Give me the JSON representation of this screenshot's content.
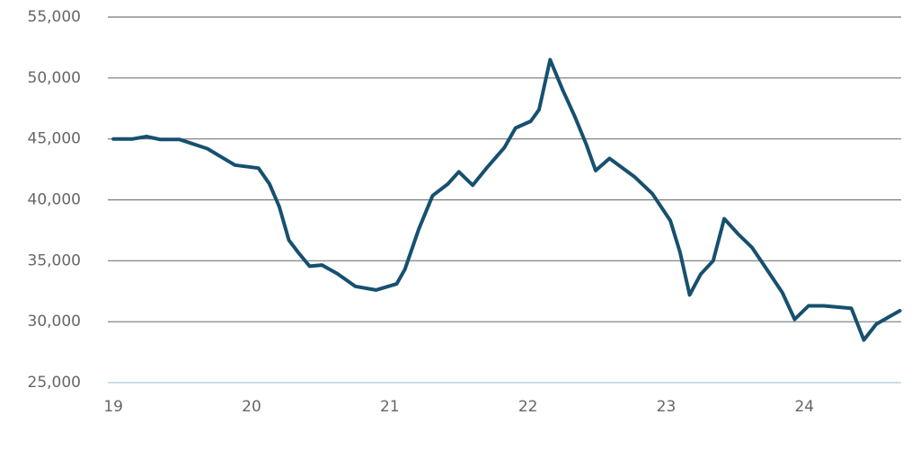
{
  "chart_data": {
    "type": "line",
    "x": [
      19.0,
      19.14,
      19.24,
      19.34,
      19.48,
      19.68,
      19.88,
      20.05,
      20.13,
      20.2,
      20.27,
      20.34,
      20.42,
      20.51,
      20.62,
      20.75,
      20.9,
      21.05,
      21.11,
      21.21,
      21.31,
      21.42,
      21.5,
      21.6,
      21.7,
      21.83,
      21.91,
      22.02,
      22.08,
      22.16,
      22.25,
      22.34,
      22.42,
      22.49,
      22.59,
      22.77,
      22.9,
      23.03,
      23.1,
      23.17,
      23.25,
      23.34,
      23.42,
      23.52,
      23.62,
      23.71,
      23.84,
      23.93,
      24.03,
      24.14,
      24.34,
      24.43,
      24.52,
      24.69
    ],
    "series": [
      {
        "color": "#16506f",
        "values": [
          45000,
          45000,
          45200,
          44950,
          44950,
          44200,
          42850,
          42600,
          41300,
          39450,
          36700,
          35650,
          34550,
          34650,
          33950,
          32900,
          32600,
          33100,
          34300,
          37600,
          40350,
          41300,
          42300,
          41200,
          42600,
          44300,
          45900,
          46450,
          47400,
          51500,
          49050,
          46800,
          44600,
          42400,
          43400,
          41900,
          40500,
          38300,
          35700,
          32200,
          33900,
          35000,
          38450,
          37200,
          36100,
          34600,
          32400,
          30200,
          31300,
          31300,
          31100,
          28500,
          29800,
          30900
        ]
      }
    ],
    "xlim": [
      18.96,
      24.7
    ],
    "xticks": [
      19,
      20,
      21,
      22,
      23,
      24
    ],
    "ylim": [
      25000,
      55000
    ],
    "yticks": [
      {
        "value": 25000,
        "label": "25,000"
      },
      {
        "value": 30000,
        "label": "30,000"
      },
      {
        "value": 35000,
        "label": "35,000"
      },
      {
        "value": 40000,
        "label": "40,000"
      },
      {
        "value": 45000,
        "label": "45,000"
      },
      {
        "value": 50000,
        "label": "50,000"
      },
      {
        "value": 55000,
        "label": "55,000"
      }
    ],
    "grid": true
  }
}
